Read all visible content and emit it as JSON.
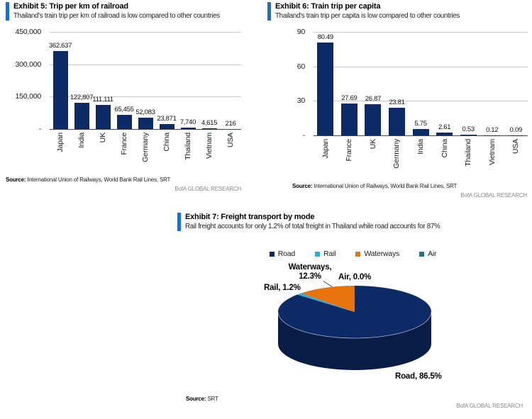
{
  "colors": {
    "accent_blue": "#1B6FC8",
    "bar_navy": "#0C2A66",
    "pie_side_navy": "#081C45",
    "rail_blue": "#2EA9E0",
    "waterways_orange": "#E8730D",
    "air_teal": "#16798C",
    "gridline_gray": "#C9C9C9",
    "brand_gray": "#8A8A8A"
  },
  "exhibits": [
    {
      "title": "Exhibit 5: Trip per km of railroad",
      "subtitle": "Thailand's train trip per km of railroad is low compared to other countries",
      "source_label": "Source:",
      "source_text": " International Union of Railways, World Bank Rail Lines, SRT",
      "brand": "BofA GLOBAL RESEARCH"
    },
    {
      "title": "Exhibit 6: Train trip per capita",
      "subtitle": "Thailand's train trip per capita is low compared to other countries",
      "source_label": "Source:",
      "source_text": " International Union of Railways, World Bank Rail Lines, SRT",
      "brand": "BofA GLOBAL RESEARCH"
    },
    {
      "title": "Exhibit 7: Freight transport by mode",
      "subtitle": "Rail freight accounts for only 1.2% of total freight in Thailand while road accounts for 87%",
      "source_label": "Source:",
      "source_text": " SRT",
      "brand": "BofA GLOBAL RESEARCH"
    }
  ],
  "chart_data": [
    {
      "type": "bar",
      "title": "Trip per km of railroad",
      "categories": [
        "Japan",
        "India",
        "UK",
        "France",
        "Germany",
        "China",
        "Thailand",
        "Vietnam",
        "USA"
      ],
      "values": [
        362637,
        122807,
        111111,
        65455,
        52083,
        23871,
        7740,
        4615,
        216
      ],
      "value_labels": [
        "362,637",
        "122,807",
        "111,111",
        "65,455",
        "52,083",
        "23,871",
        "7,740",
        "4,615",
        "216"
      ],
      "xlabel": "",
      "ylabel": "",
      "ylim": [
        0,
        450000
      ],
      "y_ticks": [
        "450,000",
        "300,000",
        "150,000",
        "-"
      ],
      "grid": true,
      "bar_color": "#0C2A66"
    },
    {
      "type": "bar",
      "title": "Train trip per capita",
      "categories": [
        "Japan",
        "France",
        "UK",
        "Germany",
        "India",
        "China",
        "Thailand",
        "Vietnam",
        "USA"
      ],
      "values": [
        80.49,
        27.69,
        26.87,
        23.81,
        5.75,
        2.61,
        0.53,
        0.12,
        0.09
      ],
      "value_labels": [
        "80.49",
        "27.69",
        "26.87",
        "23.81",
        "5.75",
        "2.61",
        "0.53",
        "0.12",
        "0.09"
      ],
      "xlabel": "",
      "ylabel": "",
      "ylim": [
        0,
        90
      ],
      "y_ticks": [
        "90",
        "60",
        "30",
        "-"
      ],
      "grid": true,
      "bar_color": "#0C2A66"
    },
    {
      "type": "pie",
      "title": "Freight transport by mode",
      "effect": "3d",
      "start_angle_deg": 0,
      "direction": "clockwise",
      "legend_position": "top-center",
      "legend": [
        {
          "label": "Road",
          "color": "#0C2A66"
        },
        {
          "label": "Rail",
          "color": "#2EA9E0"
        },
        {
          "label": "Waterways",
          "color": "#E8730D"
        },
        {
          "label": "Air",
          "color": "#16798C"
        }
      ],
      "slices": [
        {
          "label": "Road",
          "pct": 86.5,
          "color": "#0C2A66",
          "callout": "Road, 86.5%"
        },
        {
          "label": "Rail",
          "pct": 1.2,
          "color": "#2EA9E0",
          "callout": "Rail, 1.2%"
        },
        {
          "label": "Waterways",
          "pct": 12.3,
          "color": "#E8730D",
          "callout": "Waterways,\n12.3%"
        },
        {
          "label": "Air",
          "pct": 0.0,
          "color": "#16798C",
          "callout": "Air, 0.0%"
        }
      ],
      "side_color": "#081C45"
    }
  ]
}
